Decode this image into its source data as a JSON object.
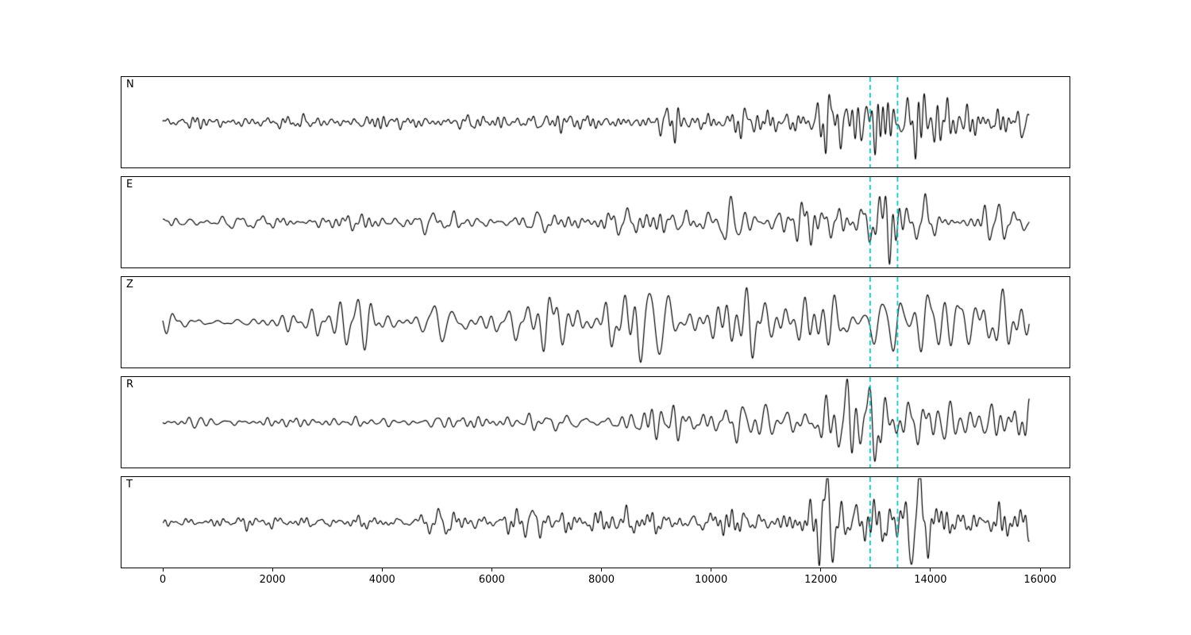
{
  "chart_data": {
    "type": "line",
    "title": "",
    "xlabel": "",
    "ylabel": "",
    "background_color": "#ffffff",
    "line_color": "#000000",
    "frame_color": "#000000",
    "x_ticks": [
      0,
      2000,
      4000,
      6000,
      8000,
      10000,
      12000,
      14000,
      16000
    ],
    "xlim": [
      -770,
      16550
    ],
    "x_data_range": [
      0,
      15800
    ],
    "grid": false,
    "legend": "none",
    "vlines": {
      "positions": [
        12900,
        13400
      ],
      "color": "#00bfbf",
      "style": "dashed",
      "applies_to": "all-panels"
    },
    "panels": [
      {
        "label": "N",
        "seed": 101,
        "envelope": [
          [
            0,
            5
          ],
          [
            2000,
            6
          ],
          [
            5000,
            7
          ],
          [
            8000,
            8
          ],
          [
            9000,
            9
          ],
          [
            9250,
            24
          ],
          [
            9450,
            10
          ],
          [
            10000,
            11
          ],
          [
            11000,
            12
          ],
          [
            11800,
            13
          ],
          [
            12000,
            34
          ],
          [
            12250,
            48
          ],
          [
            12500,
            22
          ],
          [
            12750,
            18
          ],
          [
            12900,
            36
          ],
          [
            13050,
            52
          ],
          [
            13250,
            46
          ],
          [
            13450,
            26
          ],
          [
            13650,
            18
          ],
          [
            13850,
            36
          ],
          [
            14100,
            32
          ],
          [
            14400,
            24
          ],
          [
            14800,
            20
          ],
          [
            15300,
            18
          ],
          [
            15700,
            15
          ],
          [
            15800,
            12
          ]
        ]
      },
      {
        "label": "E",
        "seed": 202,
        "envelope": [
          [
            0,
            6
          ],
          [
            2000,
            7
          ],
          [
            4000,
            8
          ],
          [
            6000,
            9
          ],
          [
            7500,
            10
          ],
          [
            8500,
            13
          ],
          [
            9200,
            17
          ],
          [
            9800,
            15
          ],
          [
            10300,
            20
          ],
          [
            10800,
            17
          ],
          [
            11300,
            20
          ],
          [
            11800,
            18
          ],
          [
            12300,
            20
          ],
          [
            12700,
            19
          ],
          [
            12950,
            34
          ],
          [
            13080,
            52
          ],
          [
            13250,
            40
          ],
          [
            13450,
            20
          ],
          [
            13700,
            16
          ],
          [
            13900,
            30
          ],
          [
            14200,
            28
          ],
          [
            14600,
            18
          ],
          [
            15000,
            22
          ],
          [
            15400,
            18
          ],
          [
            15800,
            13
          ]
        ]
      },
      {
        "label": "Z",
        "seed": 303,
        "envelope": [
          [
            0,
            9
          ],
          [
            1200,
            7
          ],
          [
            2200,
            10
          ],
          [
            2900,
            24
          ],
          [
            3300,
            14
          ],
          [
            3800,
            20
          ],
          [
            4300,
            16
          ],
          [
            5000,
            18
          ],
          [
            5600,
            15
          ],
          [
            6100,
            22
          ],
          [
            6700,
            18
          ],
          [
            7200,
            24
          ],
          [
            7700,
            20
          ],
          [
            8100,
            32
          ],
          [
            8450,
            44
          ],
          [
            8800,
            32
          ],
          [
            9100,
            40
          ],
          [
            9400,
            28
          ],
          [
            9800,
            42
          ],
          [
            10100,
            44
          ],
          [
            10400,
            30
          ],
          [
            10900,
            34
          ],
          [
            11400,
            28
          ],
          [
            11900,
            32
          ],
          [
            12400,
            27
          ],
          [
            12900,
            32
          ],
          [
            13150,
            36
          ],
          [
            13500,
            26
          ],
          [
            14000,
            32
          ],
          [
            14500,
            27
          ],
          [
            15000,
            30
          ],
          [
            15400,
            25
          ],
          [
            15800,
            18
          ]
        ]
      },
      {
        "label": "R",
        "seed": 404,
        "envelope": [
          [
            0,
            5
          ],
          [
            2000,
            6
          ],
          [
            4000,
            6
          ],
          [
            6000,
            7
          ],
          [
            7500,
            9
          ],
          [
            8500,
            12
          ],
          [
            9200,
            15
          ],
          [
            9800,
            13
          ],
          [
            10300,
            18
          ],
          [
            10800,
            15
          ],
          [
            11300,
            17
          ],
          [
            11800,
            19
          ],
          [
            12300,
            23
          ],
          [
            12700,
            26
          ],
          [
            12950,
            40
          ],
          [
            13080,
            52
          ],
          [
            13250,
            38
          ],
          [
            13500,
            24
          ],
          [
            13750,
            32
          ],
          [
            14000,
            27
          ],
          [
            14400,
            30
          ],
          [
            14800,
            22
          ],
          [
            15200,
            20
          ],
          [
            15600,
            22
          ],
          [
            15800,
            26
          ]
        ]
      },
      {
        "label": "T",
        "seed": 505,
        "envelope": [
          [
            0,
            5
          ],
          [
            2000,
            6
          ],
          [
            4000,
            7
          ],
          [
            5500,
            9
          ],
          [
            6500,
            11
          ],
          [
            7500,
            12
          ],
          [
            8600,
            22
          ],
          [
            8900,
            12
          ],
          [
            9500,
            13
          ],
          [
            10200,
            15
          ],
          [
            10800,
            14
          ],
          [
            11400,
            16
          ],
          [
            11900,
            20
          ],
          [
            12050,
            36
          ],
          [
            12200,
            52
          ],
          [
            12400,
            30
          ],
          [
            12700,
            28
          ],
          [
            13000,
            40
          ],
          [
            13200,
            34
          ],
          [
            13500,
            24
          ],
          [
            13800,
            38
          ],
          [
            14050,
            33
          ],
          [
            14400,
            24
          ],
          [
            14800,
            26
          ],
          [
            15200,
            22
          ],
          [
            15600,
            20
          ],
          [
            15800,
            15
          ]
        ]
      }
    ]
  }
}
